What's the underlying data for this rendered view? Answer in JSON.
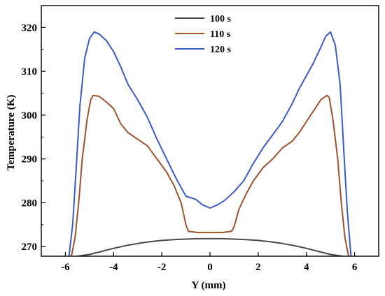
{
  "chart_data": {
    "type": "line",
    "xlabel": "Y (mm)",
    "ylabel": "Temperature (K)",
    "xlim": [
      -7,
      7
    ],
    "ylim": [
      267.8,
      325
    ],
    "xticks": [
      -6,
      -4,
      -2,
      0,
      2,
      4,
      6
    ],
    "yticks": [
      270,
      280,
      290,
      300,
      310,
      320
    ],
    "grid": false,
    "legend_position": "top-center",
    "series": [
      {
        "name": "100 s",
        "color": "#4a4a4a",
        "x": [
          -5.5,
          -5.0,
          -4.5,
          -4.0,
          -3.5,
          -3.0,
          -2.5,
          -2.0,
          -1.5,
          -1.0,
          -0.5,
          0.0,
          0.5,
          1.0,
          1.5,
          2.0,
          2.5,
          3.0,
          3.5,
          4.0,
          4.5,
          5.0,
          5.5
        ],
        "y": [
          267.8,
          268.2,
          268.9,
          269.6,
          270.2,
          270.7,
          271.1,
          271.4,
          271.6,
          271.7,
          271.8,
          271.8,
          271.8,
          271.7,
          271.6,
          271.4,
          271.1,
          270.7,
          270.2,
          269.6,
          268.9,
          268.2,
          267.8
        ]
      },
      {
        "name": "110 s",
        "color": "#a0522d",
        "x": [
          -5.75,
          -5.6,
          -5.45,
          -5.3,
          -5.1,
          -4.95,
          -4.85,
          -4.6,
          -4.3,
          -4.0,
          -3.7,
          -3.4,
          -3.0,
          -2.6,
          -2.2,
          -1.8,
          -1.5,
          -1.2,
          -1.0,
          -0.9,
          -0.5,
          0.0,
          0.5,
          0.9,
          1.0,
          1.2,
          1.5,
          1.8,
          2.2,
          2.6,
          3.0,
          3.4,
          3.7,
          4.0,
          4.3,
          4.6,
          4.85,
          4.95,
          5.1,
          5.3,
          5.45,
          5.6,
          5.75
        ],
        "y": [
          267.8,
          272.0,
          280.0,
          290.0,
          299.0,
          303.5,
          304.5,
          304.3,
          303.0,
          301.5,
          298.0,
          296.0,
          294.5,
          293.0,
          290.0,
          287.0,
          284.0,
          280.0,
          275.0,
          273.5,
          273.2,
          273.2,
          273.2,
          273.5,
          274.5,
          278.5,
          282.0,
          285.0,
          288.0,
          290.0,
          292.5,
          294.0,
          296.0,
          298.5,
          301.0,
          303.5,
          304.5,
          304.0,
          299.0,
          290.0,
          280.0,
          272.0,
          267.8
        ]
      },
      {
        "name": "120 s",
        "color": "#3a5bc7",
        "x": [
          -5.85,
          -5.7,
          -5.55,
          -5.4,
          -5.2,
          -5.0,
          -4.8,
          -4.6,
          -4.3,
          -4.0,
          -3.7,
          -3.4,
          -3.0,
          -2.6,
          -2.2,
          -1.8,
          -1.4,
          -1.0,
          -0.6,
          -0.3,
          0.0,
          0.3,
          0.6,
          1.0,
          1.4,
          1.8,
          2.2,
          2.6,
          3.0,
          3.4,
          3.7,
          4.0,
          4.3,
          4.6,
          4.8,
          5.0,
          5.2,
          5.4,
          5.55,
          5.7,
          5.85
        ],
        "y": [
          267.8,
          275.0,
          288.0,
          302.0,
          313.0,
          317.5,
          319.0,
          318.5,
          317.0,
          314.5,
          311.0,
          307.0,
          303.5,
          299.5,
          294.5,
          290.0,
          285.5,
          281.5,
          280.8,
          279.5,
          278.8,
          279.5,
          280.5,
          282.5,
          285.0,
          289.0,
          292.5,
          295.5,
          298.5,
          302.5,
          306.0,
          309.0,
          312.0,
          315.5,
          318.0,
          319.0,
          316.0,
          307.0,
          292.0,
          278.0,
          267.8
        ]
      }
    ]
  }
}
